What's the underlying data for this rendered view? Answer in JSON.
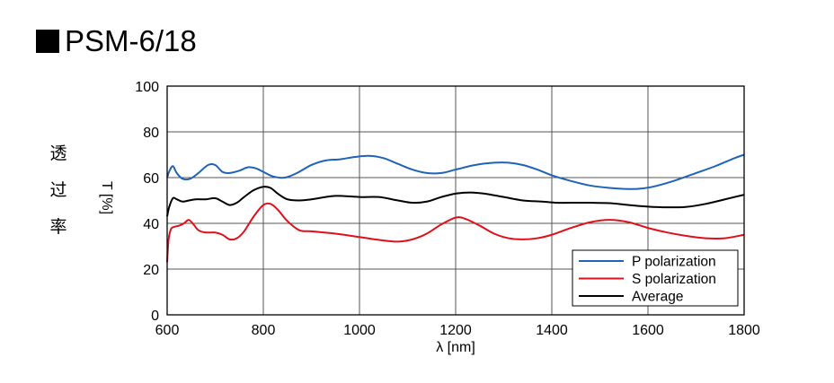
{
  "title": "PSM-6/18",
  "side_label_chars": [
    "透",
    "过",
    "率"
  ],
  "colors": {
    "p_polarization": "#1f63b8",
    "s_polarization": "#e0101a",
    "average": "#000000",
    "grid": "#555555",
    "frame": "#000000"
  },
  "chart_data": {
    "type": "line",
    "title": "",
    "xlabel": "λ [nm]",
    "ylabel": "T [%]",
    "xlim": [
      600,
      1800
    ],
    "ylim": [
      0,
      100
    ],
    "xticks": [
      600,
      800,
      1000,
      1200,
      1400,
      1600,
      1800
    ],
    "yticks": [
      0,
      20,
      40,
      60,
      80,
      100
    ],
    "grid": true,
    "legend_position": "bottom-right",
    "series": [
      {
        "name": "P polarization",
        "color_key": "p_polarization",
        "x": [
          600,
          605,
          612,
          620,
          632,
          648,
          665,
          685,
          700,
          715,
          730,
          750,
          768,
          785,
          800,
          820,
          845,
          870,
          900,
          930,
          960,
          990,
          1020,
          1050,
          1080,
          1110,
          1140,
          1170,
          1200,
          1240,
          1280,
          1310,
          1340,
          1370,
          1400,
          1440,
          1480,
          1520,
          1560,
          1590,
          1620,
          1660,
          1700,
          1740,
          1780,
          1800
        ],
        "y": [
          60,
          63,
          65,
          62,
          59.5,
          59.5,
          62,
          65.5,
          65.5,
          62.5,
          62,
          63,
          64.5,
          64,
          62.5,
          60.5,
          60,
          62,
          65.5,
          67.5,
          68,
          69,
          69.5,
          68.5,
          66,
          63.5,
          62,
          62,
          63.5,
          65.5,
          66.5,
          66.5,
          65.5,
          63.5,
          61,
          58.5,
          56.5,
          55.5,
          55,
          55.3,
          56.5,
          59,
          62,
          65,
          68.5,
          70
        ]
      },
      {
        "name": "S polarization",
        "color_key": "s_polarization",
        "x": [
          600,
          603,
          608,
          615,
          625,
          635,
          645,
          655,
          665,
          680,
          700,
          715,
          730,
          745,
          760,
          780,
          800,
          815,
          830,
          850,
          875,
          900,
          950,
          1000,
          1050,
          1080,
          1110,
          1140,
          1170,
          1200,
          1220,
          1250,
          1280,
          1310,
          1340,
          1370,
          1400,
          1440,
          1480,
          1520,
          1560,
          1600,
          1640,
          1680,
          1720,
          1760,
          1800
        ],
        "y": [
          23,
          33,
          37.5,
          38.5,
          39,
          40,
          41.5,
          39.5,
          37,
          36,
          36,
          35,
          33,
          33.5,
          36.5,
          43,
          48,
          48.5,
          46,
          41,
          37,
          36.5,
          35.5,
          34,
          32.5,
          32,
          33,
          35.5,
          39.5,
          42.5,
          42,
          39,
          35.5,
          33.5,
          33,
          33.5,
          35,
          38,
          40.5,
          41.5,
          40.5,
          38,
          36,
          34.5,
          33.5,
          33.5,
          35
        ]
      },
      {
        "name": "Average",
        "color_key": "average",
        "x": [
          600,
          604,
          612,
          620,
          632,
          645,
          660,
          680,
          700,
          715,
          730,
          745,
          760,
          780,
          800,
          815,
          830,
          850,
          875,
          900,
          950,
          1000,
          1040,
          1080,
          1110,
          1140,
          1170,
          1200,
          1230,
          1260,
          1300,
          1340,
          1380,
          1410,
          1440,
          1480,
          1520,
          1560,
          1600,
          1640,
          1680,
          1720,
          1760,
          1800
        ],
        "y": [
          43,
          47,
          51,
          50.5,
          49.5,
          50,
          50.5,
          50.5,
          51,
          49.5,
          48,
          49,
          51.5,
          54.5,
          56,
          55.5,
          53,
          50.5,
          50,
          50.5,
          52,
          51.5,
          51.5,
          50,
          49,
          49.5,
          51.5,
          53,
          53.5,
          53,
          51.5,
          50,
          49.5,
          49,
          49,
          49,
          48.8,
          48,
          47.3,
          47,
          47.2,
          48.5,
          50.5,
          52.5
        ]
      }
    ]
  }
}
